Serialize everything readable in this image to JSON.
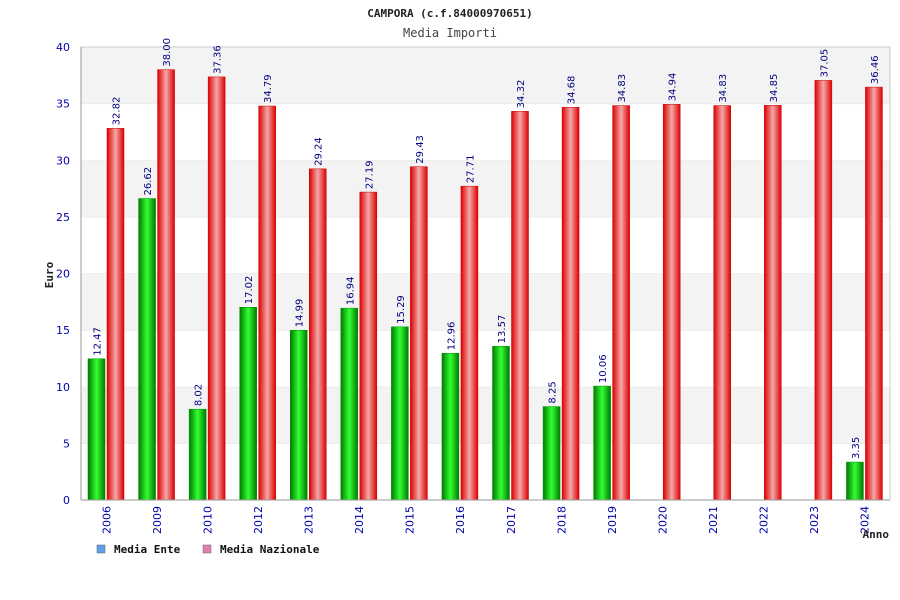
{
  "chart_data": {
    "type": "bar",
    "title": "CAMPORA (c.f.84000970651)",
    "subtitle": "Media Importi",
    "ylabel": "Euro",
    "xlabel": "Anno",
    "ylim": [
      0,
      40
    ],
    "yticks": [
      0,
      5,
      10,
      15,
      20,
      25,
      30,
      35,
      40
    ],
    "grid": "horizontal-bands",
    "legend_placement": "bottom-left",
    "categories": [
      "2006",
      "2009",
      "2010",
      "2012",
      "2013",
      "2014",
      "2015",
      "2016",
      "2017",
      "2018",
      "2019",
      "2020",
      "2021",
      "2022",
      "2023",
      "2024"
    ],
    "series": [
      {
        "name": "Media Ente",
        "color": "#00c000",
        "legend_color": "#5f9fef",
        "values": [
          12.47,
          26.62,
          8.02,
          17.02,
          14.99,
          16.94,
          15.29,
          12.96,
          13.57,
          8.25,
          10.06,
          null,
          null,
          null,
          null,
          3.35
        ],
        "labels": [
          "12.47",
          "26.62",
          "8.02",
          "17.02",
          "14.99",
          "16.94",
          "15.29",
          "12.96",
          "13.57",
          "8.25",
          "10.06",
          "",
          "",
          "",
          "",
          "3.35"
        ]
      },
      {
        "name": "Media Nazionale",
        "color": "#ee0000",
        "legend_color": "#e080b0",
        "values": [
          32.82,
          38.0,
          37.36,
          34.79,
          29.24,
          27.19,
          29.43,
          27.71,
          34.32,
          34.68,
          34.83,
          34.94,
          34.83,
          34.85,
          37.05,
          36.46
        ],
        "labels": [
          "32.82",
          "38.00",
          "37.36",
          "34.79",
          "29.24",
          "27.19",
          "29.43",
          "27.71",
          "34.32",
          "34.68",
          "34.83",
          "34.94",
          "34.83",
          "34.85",
          "37.05",
          "36.46"
        ]
      }
    ]
  }
}
